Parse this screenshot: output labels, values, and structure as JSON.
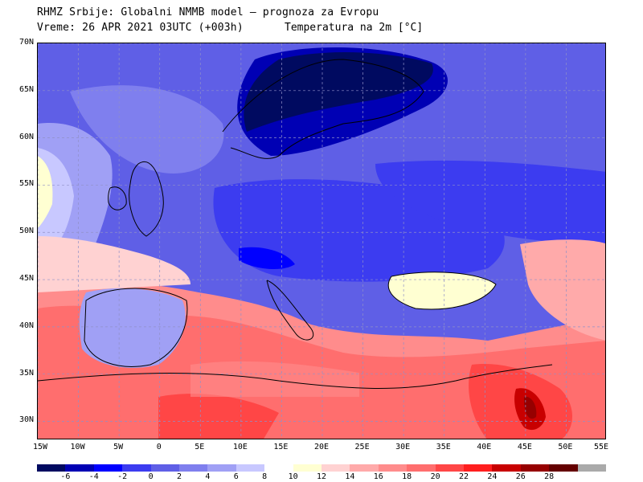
{
  "title": {
    "line1": "RHMZ Srbije: Globalni NMMB model – prognoza za Evropu",
    "line2_left": "Vreme: 26 APR 2021 03UTC (+003h)",
    "line2_right": "Temperatura na 2m [°C]"
  },
  "map": {
    "lon_range": [
      -15,
      55
    ],
    "lat_range": [
      28,
      70
    ],
    "lat_ticks": [
      "70N",
      "65N",
      "60N",
      "55N",
      "50N",
      "45N",
      "40N",
      "35N",
      "30N"
    ],
    "lat_values": [
      70,
      65,
      60,
      55,
      50,
      45,
      40,
      35,
      30
    ],
    "lon_ticks": [
      "15W",
      "10W",
      "5W",
      "0",
      "5E",
      "10E",
      "15E",
      "20E",
      "25E",
      "30E",
      "35E",
      "40E",
      "45E",
      "50E",
      "55E"
    ],
    "lon_values": [
      -15,
      -10,
      -5,
      0,
      5,
      10,
      15,
      20,
      25,
      30,
      35,
      40,
      45,
      50,
      55
    ],
    "gridlines": true
  },
  "colorbar": {
    "labels": [
      "-6",
      "-4",
      "-2",
      "0",
      "2",
      "4",
      "6",
      "8",
      "10",
      "12",
      "14",
      "16",
      "18",
      "20",
      "22",
      "24",
      "26",
      "28"
    ],
    "colors": [
      "#000a60",
      "#0000b4",
      "#0000ff",
      "#3c3cf0",
      "#5f5fe6",
      "#7f7fee",
      "#a0a0f5",
      "#c8c8ff",
      "#ffffff",
      "#ffffd2",
      "#ffd2d2",
      "#ffaaaa",
      "#ff8c8c",
      "#ff6e6e",
      "#ff4646",
      "#ff1e1e",
      "#c80000",
      "#960000",
      "#640000",
      "#aaaaaa"
    ]
  }
}
